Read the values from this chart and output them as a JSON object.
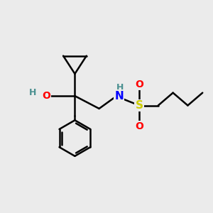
{
  "background_color": "#ebebeb",
  "bond_color": "#000000",
  "bond_width": 1.8,
  "O_color": "#ff0000",
  "N_color": "#0000ff",
  "S_color": "#cccc00",
  "H_color": "#4a9090",
  "font_size": 10,
  "figsize": [
    3.0,
    3.0
  ],
  "dpi": 100,
  "xlim": [
    0,
    10
  ],
  "ylim": [
    0,
    10
  ]
}
